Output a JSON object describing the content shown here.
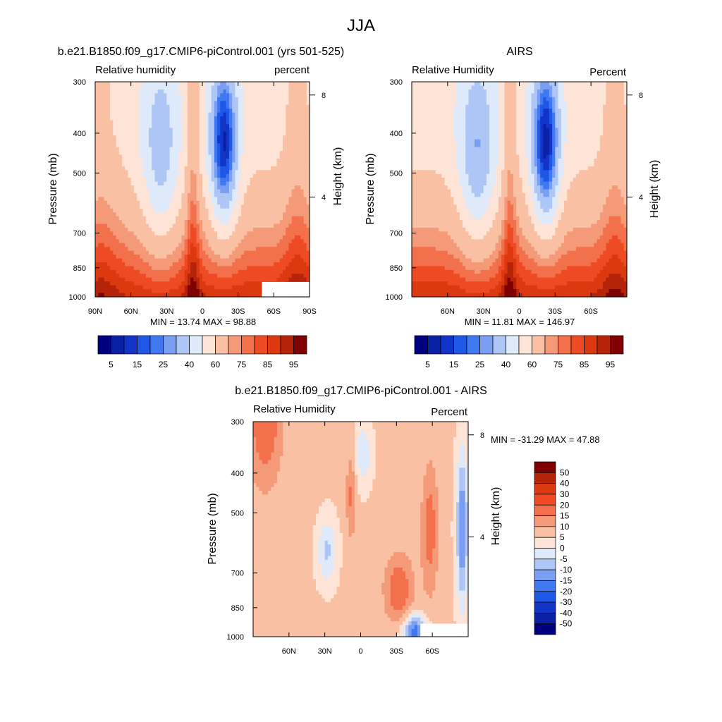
{
  "page": {
    "title": "JJA"
  },
  "colors": {
    "abs_scale": [
      "#00007f",
      "#0a21a6",
      "#1334c9",
      "#1f57e6",
      "#3f78f0",
      "#7a9ef2",
      "#aec6f5",
      "#deeaf9",
      "#fde4d6",
      "#f9c0a4",
      "#f59a78",
      "#f2704c",
      "#ee4b24",
      "#dc3910",
      "#b52409",
      "#7e0000"
    ],
    "diff_scale": [
      "#00007f",
      "#0a21a6",
      "#1334c9",
      "#1f57e6",
      "#3f78f0",
      "#7a9ef2",
      "#aec6f5",
      "#deeaf9",
      "#fde4d6",
      "#f9c0a4",
      "#f59a78",
      "#f2704c",
      "#ee4b24",
      "#dc3910",
      "#b52409",
      "#7e0000"
    ]
  },
  "chart_data": [
    {
      "type": "heatmap",
      "id": "model",
      "title": "b.e21.B1850.f09_g17.CMIP6-piControl.001 (yrs 501-525)",
      "left_string": "Relative humidity",
      "right_string": "percent",
      "ylabel": "Pressure (mb)",
      "ylabel_right": "Height (km)",
      "x_tick_labels": [
        "90N",
        "60N",
        "30N",
        "0",
        "30S",
        "60S",
        "90S"
      ],
      "x_ticks": [
        90,
        60,
        30,
        0,
        -30,
        -60,
        -90
      ],
      "xlim": [
        90,
        -90
      ],
      "y_tick_labels": [
        "300",
        "400",
        "500",
        "700",
        "850",
        "1000"
      ],
      "y_ticks": [
        300,
        400,
        500,
        700,
        850,
        1000
      ],
      "ylim": [
        300,
        1000
      ],
      "y_scale": "log",
      "height_ticks": [
        "8",
        "4"
      ],
      "height_km": [
        8,
        4
      ],
      "min_max_text": "MIN =  13.74  MAX =  98.88",
      "min": 13.74,
      "max": 98.88,
      "colorbar_labels": [
        "5",
        "15",
        "25",
        "40",
        "60",
        "75",
        "85",
        "95"
      ],
      "colorbar_levels": [
        5,
        10,
        15,
        20,
        25,
        30,
        40,
        50,
        60,
        70,
        75,
        80,
        85,
        90,
        95
      ],
      "missing_region": {
        "lat": [
          -50,
          -90
        ],
        "p": [
          920,
          1000
        ]
      }
    },
    {
      "type": "heatmap",
      "id": "obs",
      "title": "AIRS",
      "left_string": "Relative Humidity",
      "right_string": "Percent",
      "ylabel": "Pressure (mb)",
      "ylabel_right": "Height (km)",
      "x_tick_labels": [
        "60N",
        "30N",
        "0",
        "30S",
        "60S"
      ],
      "x_ticks": [
        60,
        30,
        0,
        -30,
        -60
      ],
      "xlim": [
        90,
        -90
      ],
      "y_tick_labels": [
        "300",
        "400",
        "500",
        "700",
        "850",
        "1000"
      ],
      "y_ticks": [
        300,
        400,
        500,
        700,
        850,
        1000
      ],
      "ylim": [
        300,
        1000
      ],
      "y_scale": "log",
      "height_ticks": [
        "8",
        "4"
      ],
      "height_km": [
        8,
        4
      ],
      "min_max_text": "MIN =  11.81  MAX = 146.97",
      "min": 11.81,
      "max": 146.97,
      "colorbar_labels": [
        "5",
        "15",
        "25",
        "40",
        "60",
        "75",
        "85",
        "95"
      ],
      "colorbar_levels": [
        5,
        10,
        15,
        20,
        25,
        30,
        40,
        50,
        60,
        70,
        75,
        80,
        85,
        90,
        95
      ]
    },
    {
      "type": "heatmap",
      "id": "diff",
      "title": "b.e21.B1850.f09_g17.CMIP6-piControl.001 - AIRS",
      "left_string": "Relative Humidity",
      "right_string": "Percent",
      "ylabel": "Pressure (mb)",
      "ylabel_right": "Height (km)",
      "x_tick_labels": [
        "60N",
        "30N",
        "0",
        "30S",
        "60S"
      ],
      "x_ticks": [
        60,
        30,
        0,
        -30,
        -60
      ],
      "xlim": [
        90,
        -90
      ],
      "y_tick_labels": [
        "300",
        "400",
        "500",
        "700",
        "850",
        "1000"
      ],
      "y_ticks": [
        300,
        400,
        500,
        700,
        850,
        1000
      ],
      "ylim": [
        300,
        1000
      ],
      "y_scale": "log",
      "height_ticks": [
        "8",
        "4"
      ],
      "height_km": [
        8,
        4
      ],
      "min_max_text": "MIN = -31.29  MAX =  47.88",
      "min": -31.29,
      "max": 47.88,
      "colorbar_labels": [
        "50",
        "40",
        "30",
        "20",
        "15",
        "10",
        "5",
        "0",
        "-5",
        "-10",
        "-15",
        "-20",
        "-30",
        "-40",
        "-50"
      ],
      "colorbar_levels": [
        50,
        40,
        30,
        20,
        15,
        10,
        5,
        0,
        -5,
        -10,
        -15,
        -20,
        -30,
        -40,
        -50
      ],
      "missing_region": {
        "lat": [
          -50,
          -90
        ],
        "p": [
          930,
          1000
        ]
      }
    }
  ]
}
